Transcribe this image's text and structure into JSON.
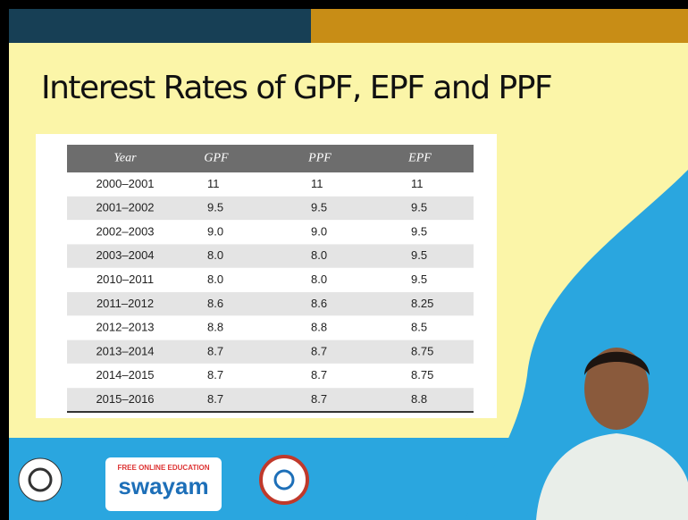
{
  "header": {
    "title": "Interest Rates of GPF, EPF and PPF"
  },
  "table": {
    "columns": [
      "Year",
      "GPF",
      "PPF",
      "EPF"
    ],
    "rows": [
      [
        "2000–2001",
        "11",
        "11",
        "11"
      ],
      [
        "2001–2002",
        "9.5",
        "9.5",
        "9.5"
      ],
      [
        "2002–2003",
        "9.0",
        "9.0",
        "9.5"
      ],
      [
        "2003–2004",
        "8.0",
        "8.0",
        "9.5"
      ],
      [
        "2010–2011",
        "8.0",
        "8.0",
        "9.5"
      ],
      [
        "2011–2012",
        "8.6",
        "8.6",
        "8.25"
      ],
      [
        "2012–2013",
        "8.8",
        "8.8",
        "8.5"
      ],
      [
        "2013–2014",
        "8.7",
        "8.7",
        "8.75"
      ],
      [
        "2014–2015",
        "8.7",
        "8.7",
        "8.75"
      ],
      [
        "2015–2016",
        "8.7",
        "8.7",
        "8.8"
      ]
    ]
  },
  "footer": {
    "logo_tagline": "FREE ONLINE EDUCATION",
    "logo_name": "swayam"
  }
}
